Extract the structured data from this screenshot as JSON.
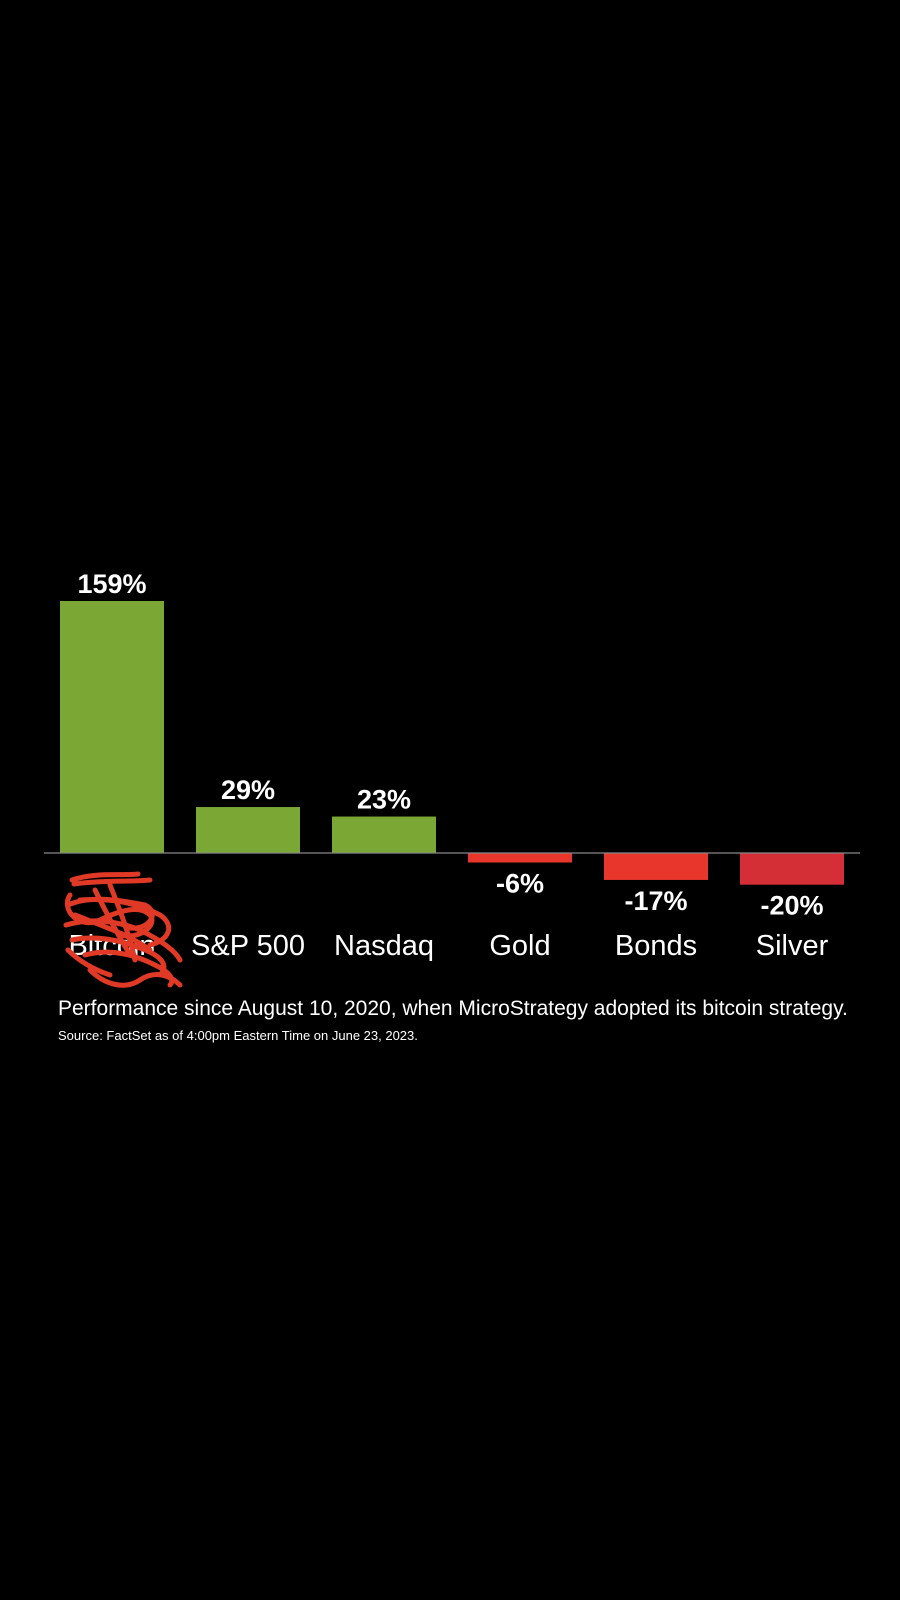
{
  "chart_data": {
    "type": "bar",
    "categories": [
      "Bitcoin",
      "S&P 500",
      "Nasdaq",
      "Gold",
      "Bonds",
      "Silver"
    ],
    "values": [
      159,
      29,
      23,
      -6,
      -17,
      -20
    ],
    "value_labels": [
      "159%",
      "29%",
      "23%",
      "-6%",
      "-17%",
      "-20%"
    ],
    "colors": [
      "#7ba835",
      "#7ba835",
      "#7ba835",
      "#e8362c",
      "#e8362c",
      "#d42f37"
    ],
    "caption": "Performance since August 10, 2020, when MicroStrategy adopted its bitcoin strategy.",
    "source": "Source: FactSet as of 4:00pm Eastern Time on June 23, 2023.",
    "grid": false,
    "legend": "none",
    "annotation": "first category label obscured by red hand-drawn scribble"
  },
  "scribble_color": "#e03a27",
  "baseline_color": "#888888"
}
